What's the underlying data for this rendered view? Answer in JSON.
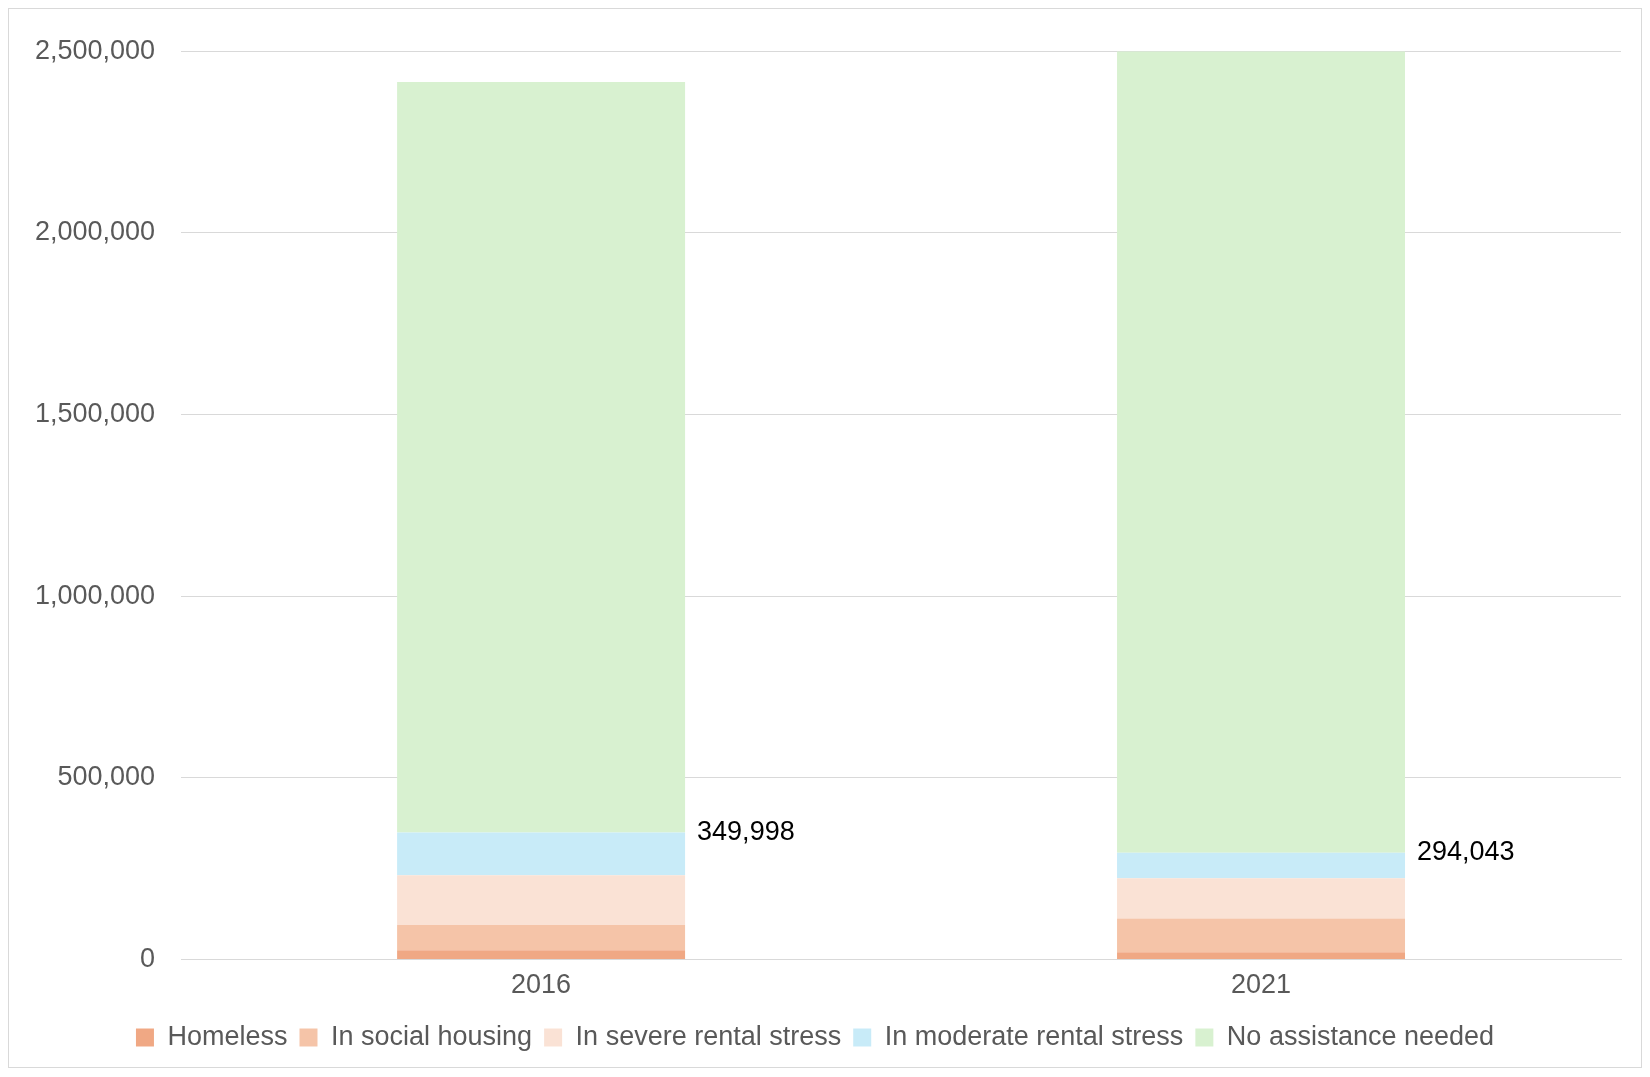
{
  "chart_data": {
    "type": "bar",
    "stacked": true,
    "categories": [
      "2016",
      "2021"
    ],
    "series": [
      {
        "name": "Homeless",
        "color": "#f0a884",
        "values": [
          26000,
          20000
        ]
      },
      {
        "name": "In social housing",
        "color": "#f5c4a8",
        "values": [
          69000,
          93000
        ]
      },
      {
        "name": "In severe rental stress",
        "color": "#fae2d5",
        "values": [
          137000,
          111000
        ]
      },
      {
        "name": "In moderate rental stress",
        "color": "#c8ebf8",
        "values": [
          118000,
          70000
        ]
      },
      {
        "name": "No assistance needed",
        "color": "#d8f1d0",
        "values": [
          2065000,
          2206000
        ]
      }
    ],
    "ylim": [
      0,
      2500000
    ],
    "yticks": [
      {
        "value": 0,
        "label": "0"
      },
      {
        "value": 500000,
        "label": "500,000"
      },
      {
        "value": 1000000,
        "label": "1,000,000"
      },
      {
        "value": 1500000,
        "label": "1,500,000"
      },
      {
        "value": 2000000,
        "label": "2,000,000"
      },
      {
        "value": 2500000,
        "label": "2,500,000"
      }
    ],
    "annotations": [
      "349,998",
      "294,043"
    ],
    "grid": "y",
    "legend": "bottom"
  }
}
